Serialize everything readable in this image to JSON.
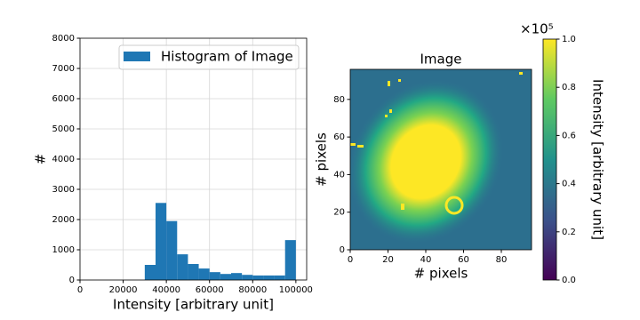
{
  "chart_data": [
    {
      "type": "histogram",
      "bins": [
        30000,
        35000,
        40000,
        45000,
        50000,
        55000,
        60000,
        65000,
        70000,
        75000,
        80000,
        85000,
        90000,
        95000,
        100000
      ],
      "counts": [
        500,
        2550,
        1950,
        850,
        530,
        380,
        260,
        200,
        230,
        170,
        150,
        150,
        150,
        1320
      ],
      "color": "#1f77b4",
      "series_name": "Histogram of Image",
      "xlabel": "Intensity [arbitrary unit]",
      "ylabel": "#",
      "xlim": [
        0,
        105000
      ],
      "xticks": [
        0,
        20000,
        40000,
        60000,
        80000,
        100000
      ],
      "ylim": [
        0,
        8000
      ],
      "yticks": [
        0,
        1000,
        2000,
        3000,
        4000,
        5000,
        6000,
        7000,
        8000
      ],
      "grid": true,
      "legend": "upper right"
    },
    {
      "type": "image",
      "title": "Image",
      "xlabel": "# pixels",
      "ylabel": "# pixels",
      "xlim": [
        0,
        96
      ],
      "xticks": [
        0,
        20,
        40,
        60,
        80
      ],
      "ylim": [
        0,
        96
      ],
      "yticks": [
        0,
        20,
        40,
        60,
        80
      ],
      "colormap": "viridis",
      "colorbar": {
        "label": "Intensity [arbitrary unit]",
        "offset_text": "×10⁵",
        "lim": [
          0,
          1
        ],
        "ticks": [
          {
            "value": 0,
            "label": "0.0"
          },
          0.2,
          0.4,
          0.6,
          0.8,
          {
            "value": 1,
            "label": "1.0"
          }
        ]
      }
    }
  ]
}
